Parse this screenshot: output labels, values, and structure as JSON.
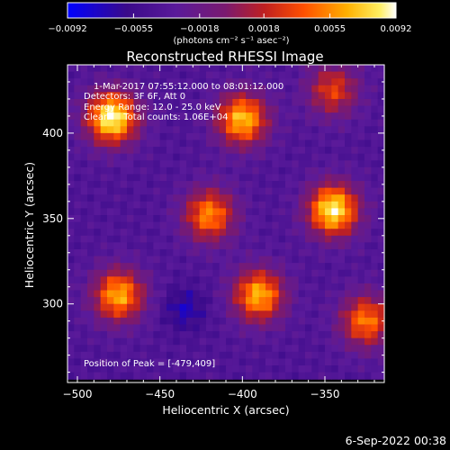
{
  "chart_data": {
    "type": "heatmap",
    "title": "Reconstructed RHESSI Image",
    "xlabel": "Heliocentric X (arcsec)",
    "ylabel": "Heliocentric Y (arcsec)",
    "xlim": [
      -506,
      -314
    ],
    "ylim": [
      254,
      440
    ],
    "x_ticks": [
      -500,
      -450,
      -400,
      -350
    ],
    "y_ticks": [
      300,
      350,
      400
    ],
    "x_tick_labels": [
      "−500",
      "−450",
      "−400",
      "−350"
    ],
    "y_tick_labels": [
      "300",
      "350",
      "400"
    ],
    "colorbar": {
      "range": [
        -0.0092,
        0.0092
      ],
      "ticks": [
        -0.0092,
        -0.0055,
        -0.0018,
        0.0018,
        0.0055,
        0.0092
      ],
      "tick_labels": [
        "−0.0092",
        "−0.0055",
        "−0.0018",
        "0.0018",
        "0.0055",
        "0.0092"
      ],
      "unit_label": "(photons cm⁻² s⁻¹ asec⁻²)",
      "colors": [
        "#0000ff",
        "#5a1a9a",
        "#9a1f5a",
        "#e0300a",
        "#ff7a00",
        "#ffd21a",
        "#ffffff"
      ]
    },
    "annotations": {
      "time_range": "1-Mar-2017 07:55:12.000 to 08:01:12.000",
      "detectors": "Detectors: 3F 6F, Att 0",
      "energy_range": "Energy Range: 12.0 - 25.0 keV",
      "clean_counts": "Clean     Total counts: 1.06E+04",
      "peak_position": "Position of Peak = [-479,409]"
    },
    "sources": [
      {
        "x": -479,
        "y": 409,
        "peak": 0.0092
      },
      {
        "x": -345,
        "y": 355,
        "peak": 0.0086
      },
      {
        "x": -400,
        "y": 408,
        "peak": 0.007
      },
      {
        "x": -475,
        "y": 305,
        "peak": 0.0064
      },
      {
        "x": -390,
        "y": 305,
        "peak": 0.0066
      },
      {
        "x": -420,
        "y": 352,
        "peak": 0.0054
      },
      {
        "x": -325,
        "y": 290,
        "peak": 0.005
      },
      {
        "x": -345,
        "y": 425,
        "peak": 0.003
      }
    ],
    "minimum": {
      "x": -435,
      "y": 297,
      "value": -0.0092
    },
    "background": -0.004,
    "grid": false
  },
  "footer": {
    "date": "6-Sep-2022 00:38"
  }
}
